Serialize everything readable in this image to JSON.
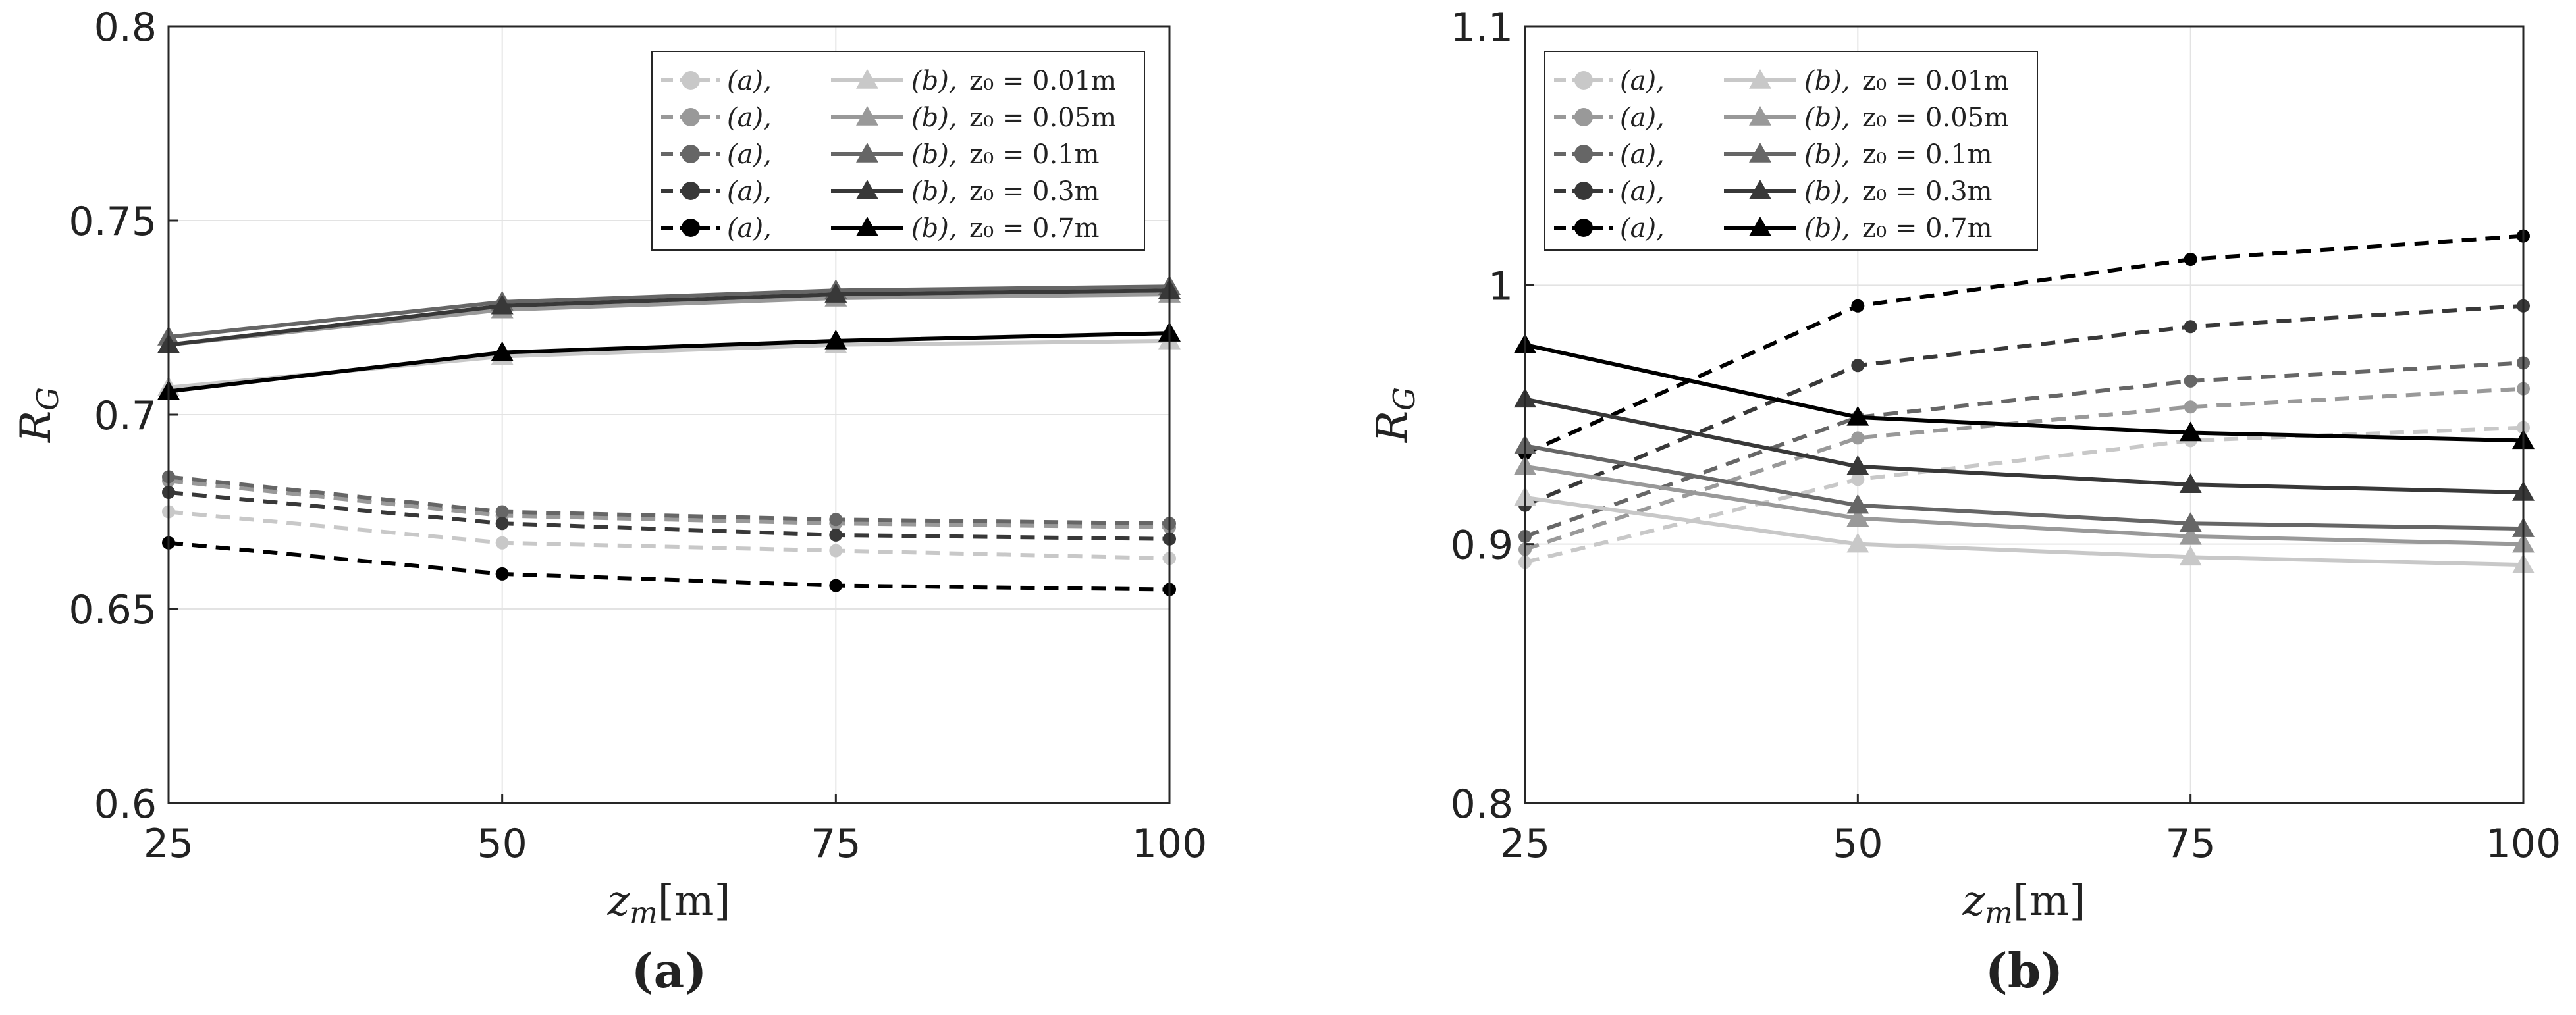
{
  "chart_data": [
    {
      "panel_label": "(a)",
      "type": "line",
      "xlabel": "z_m[m]",
      "ylabel": "R_G",
      "x": [
        25,
        50,
        75,
        100
      ],
      "xlim": [
        25,
        100
      ],
      "ylim": [
        0.6,
        0.8
      ],
      "xticks": [
        "25",
        "50",
        "75",
        "100"
      ],
      "yticks": [
        "0.6",
        "0.65",
        "0.7",
        "0.75",
        "0.8"
      ],
      "grid": true,
      "legend_position": "top-right",
      "legend_entries": [
        {
          "a": "(a),",
          "b": "(b),",
          "z": "z₀ = 0.01m",
          "color": "#c8c8c8"
        },
        {
          "a": "(a),",
          "b": "(b),",
          "z": "z₀ = 0.05m",
          "color": "#999999"
        },
        {
          "a": "(a),",
          "b": "(b),",
          "z": "z₀ = 0.1m",
          "color": "#666666"
        },
        {
          "a": "(a),",
          "b": "(b),",
          "z": "z₀ = 0.3m",
          "color": "#383838"
        },
        {
          "a": "(a),",
          "b": "(b),",
          "z": "z₀ = 0.7m",
          "color": "#000000"
        }
      ],
      "series": [
        {
          "method": "a",
          "z0": "0.01m",
          "style": "dashed",
          "marker": "circle",
          "color": "#c8c8c8",
          "values": [
            0.675,
            0.667,
            0.665,
            0.663
          ]
        },
        {
          "method": "a",
          "z0": "0.05m",
          "style": "dashed",
          "marker": "circle",
          "color": "#999999",
          "values": [
            0.683,
            0.674,
            0.672,
            0.671
          ]
        },
        {
          "method": "a",
          "z0": "0.1m",
          "style": "dashed",
          "marker": "circle",
          "color": "#666666",
          "values": [
            0.684,
            0.675,
            0.673,
            0.672
          ]
        },
        {
          "method": "a",
          "z0": "0.3m",
          "style": "dashed",
          "marker": "circle",
          "color": "#383838",
          "values": [
            0.68,
            0.672,
            0.669,
            0.668
          ]
        },
        {
          "method": "a",
          "z0": "0.7m",
          "style": "dashed",
          "marker": "circle",
          "color": "#000000",
          "values": [
            0.667,
            0.659,
            0.656,
            0.655
          ]
        },
        {
          "method": "b",
          "z0": "0.01m",
          "style": "solid",
          "marker": "triangle",
          "color": "#c8c8c8",
          "values": [
            0.707,
            0.715,
            0.718,
            0.719
          ]
        },
        {
          "method": "b",
          "z0": "0.05m",
          "style": "solid",
          "marker": "triangle",
          "color": "#999999",
          "values": [
            0.718,
            0.727,
            0.73,
            0.731
          ]
        },
        {
          "method": "b",
          "z0": "0.1m",
          "style": "solid",
          "marker": "triangle",
          "color": "#666666",
          "values": [
            0.72,
            0.729,
            0.732,
            0.733
          ]
        },
        {
          "method": "b",
          "z0": "0.3m",
          "style": "solid",
          "marker": "triangle",
          "color": "#383838",
          "values": [
            0.718,
            0.728,
            0.731,
            0.732
          ]
        },
        {
          "method": "b",
          "z0": "0.7m",
          "style": "solid",
          "marker": "triangle",
          "color": "#000000",
          "values": [
            0.706,
            0.716,
            0.719,
            0.721
          ]
        }
      ]
    },
    {
      "panel_label": "(b)",
      "type": "line",
      "xlabel": "z_m[m]",
      "ylabel": "R_G",
      "x": [
        25,
        50,
        75,
        100
      ],
      "xlim": [
        25,
        100
      ],
      "ylim": [
        0.8,
        1.1
      ],
      "xticks": [
        "25",
        "50",
        "75",
        "100"
      ],
      "yticks": [
        "0.8",
        "0.9",
        "1",
        "1.1"
      ],
      "grid": true,
      "legend_position": "top-left",
      "legend_entries": [
        {
          "a": "(a),",
          "b": "(b),",
          "z": "z₀ = 0.01m",
          "color": "#c8c8c8"
        },
        {
          "a": "(a),",
          "b": "(b),",
          "z": "z₀ = 0.05m",
          "color": "#999999"
        },
        {
          "a": "(a),",
          "b": "(b),",
          "z": "z₀ = 0.1m",
          "color": "#666666"
        },
        {
          "a": "(a),",
          "b": "(b),",
          "z": "z₀ = 0.3m",
          "color": "#383838"
        },
        {
          "a": "(a),",
          "b": "(b),",
          "z": "z₀ = 0.7m",
          "color": "#000000"
        }
      ],
      "series": [
        {
          "method": "a",
          "z0": "0.01m",
          "style": "dashed",
          "marker": "circle",
          "color": "#c8c8c8",
          "values": [
            0.893,
            0.925,
            0.94,
            0.945
          ]
        },
        {
          "method": "a",
          "z0": "0.05m",
          "style": "dashed",
          "marker": "circle",
          "color": "#999999",
          "values": [
            0.898,
            0.941,
            0.953,
            0.96
          ]
        },
        {
          "method": "a",
          "z0": "0.1m",
          "style": "dashed",
          "marker": "circle",
          "color": "#666666",
          "values": [
            0.903,
            0.949,
            0.963,
            0.97
          ]
        },
        {
          "method": "a",
          "z0": "0.3m",
          "style": "dashed",
          "marker": "circle",
          "color": "#383838",
          "values": [
            0.915,
            0.969,
            0.984,
            0.992
          ]
        },
        {
          "method": "a",
          "z0": "0.7m",
          "style": "dashed",
          "marker": "circle",
          "color": "#000000",
          "values": [
            0.935,
            0.992,
            1.01,
            1.019
          ]
        },
        {
          "method": "b",
          "z0": "0.01m",
          "style": "solid",
          "marker": "triangle",
          "color": "#c8c8c8",
          "values": [
            0.918,
            0.9,
            0.895,
            0.892
          ]
        },
        {
          "method": "b",
          "z0": "0.05m",
          "style": "solid",
          "marker": "triangle",
          "color": "#999999",
          "values": [
            0.93,
            0.91,
            0.903,
            0.9
          ]
        },
        {
          "method": "b",
          "z0": "0.1m",
          "style": "solid",
          "marker": "triangle",
          "color": "#666666",
          "values": [
            0.938,
            0.915,
            0.908,
            0.906
          ]
        },
        {
          "method": "b",
          "z0": "0.3m",
          "style": "solid",
          "marker": "triangle",
          "color": "#383838",
          "values": [
            0.956,
            0.93,
            0.923,
            0.92
          ]
        },
        {
          "method": "b",
          "z0": "0.7m",
          "style": "solid",
          "marker": "triangle",
          "color": "#000000",
          "values": [
            0.977,
            0.949,
            0.943,
            0.94
          ]
        }
      ]
    }
  ]
}
